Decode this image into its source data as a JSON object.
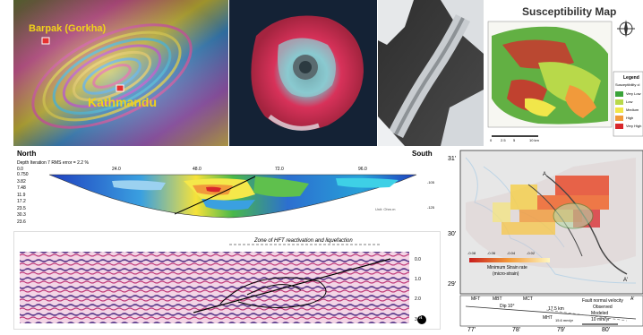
{
  "panels": {
    "insar": {
      "place1": "Barpak (Gorkha)",
      "place2": "Kathmandu"
    },
    "susceptibility": {
      "title": "Susceptibility Map",
      "legend_title": "Legend",
      "legend_sub": "Susceptibility cl",
      "legend_items": [
        "Very Low",
        "Low",
        "Medium",
        "High",
        "Very High"
      ],
      "legend_colors": [
        "#3aa339",
        "#b8d94a",
        "#f1e64a",
        "#f19a3b",
        "#d8262b"
      ],
      "scale_labels": [
        "0",
        "2.5",
        "5",
        "10 km"
      ]
    },
    "resistivity": {
      "north": "North",
      "south": "South",
      "header": "Depth   Iteration 7  RMS error = 2.2 %",
      "top_ticks": [
        "0.0",
        "24.0",
        "48.0",
        "72.0",
        "96.0"
      ],
      "depths": [
        "0.750",
        "3.82",
        "7.48",
        "11.9",
        "17.2",
        "23.5",
        "30.3",
        "23.6"
      ],
      "right_ticks": [
        "-105",
        "-125"
      ],
      "legend_note": "Unit: Ohm.m"
    },
    "gpr": {
      "zone_label": "Zone of HFT reactivation and liquefaction",
      "time_ticks": [
        "0.0",
        "1.0",
        "2.0",
        "3.0"
      ],
      "badge": "a"
    },
    "strain_map": {
      "lat_labels": [
        "31'",
        "30'",
        "29'"
      ],
      "lon_labels": [
        "77'",
        "78'",
        "79'",
        "80'"
      ],
      "min_strain": "Minimum Strain rate",
      "min_strain_unit": "(micro-strain)",
      "strain_ticks": [
        "-0.08",
        "-0.06",
        "-0.04",
        "-0.02"
      ],
      "section_labels": [
        "MFT",
        "MBT",
        "MCT",
        "A'"
      ],
      "dip": "Dip 10°",
      "depth_note": "17.5 km",
      "velocity_note": "15.6 mm/yr",
      "mht": "MHT",
      "fault_normal": "Fault normal velocity",
      "observed": "Observed",
      "modeled": "Modeled",
      "scale_velocity": "10 mm/yr",
      "point_a": "A",
      "point_b": "A'"
    }
  }
}
